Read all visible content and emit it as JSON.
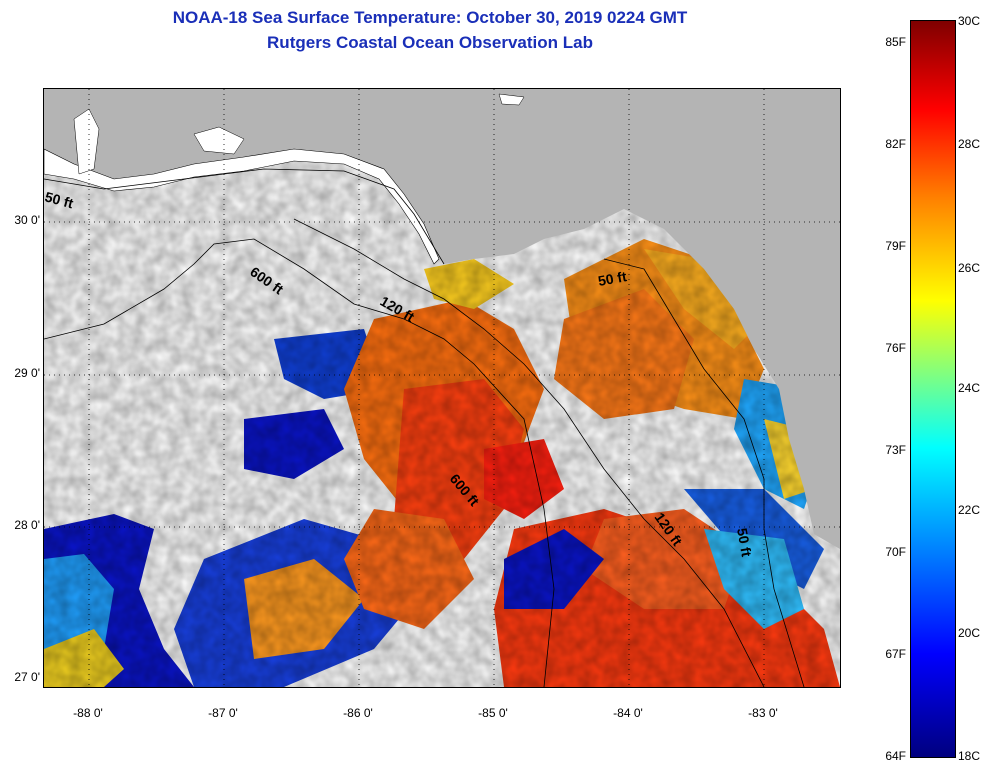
{
  "title": "NOAA-18 Sea Surface Temperature:  October 30, 2019 0224 GMT",
  "subtitle": "Rutgers Coastal Ocean Observation Lab",
  "axes": {
    "lat_labels": [
      "30 0'",
      "29 0'",
      "28 0'",
      "27 0'"
    ],
    "lon_labels": [
      "-88 0'",
      "-87 0'",
      "-86 0'",
      "-85 0'",
      "-84 0'",
      "-83 0'"
    ]
  },
  "contours": [
    "50 ft",
    "600 ft",
    "120 ft",
    "50 ft",
    "600 ft",
    "120 ft",
    "50 ft"
  ],
  "colorbar": {
    "fahrenheit": [
      "85F",
      "82F",
      "79F",
      "76F",
      "73F",
      "70F",
      "67F",
      "64F"
    ],
    "celsius": [
      "30C",
      "28C",
      "26C",
      "24C",
      "22C",
      "20C",
      "18C"
    ]
  },
  "colors": {
    "land": "#b4b4b4",
    "title": "#1a2fb8",
    "warm": "#ff4a10",
    "cool": "#0a14c8"
  }
}
